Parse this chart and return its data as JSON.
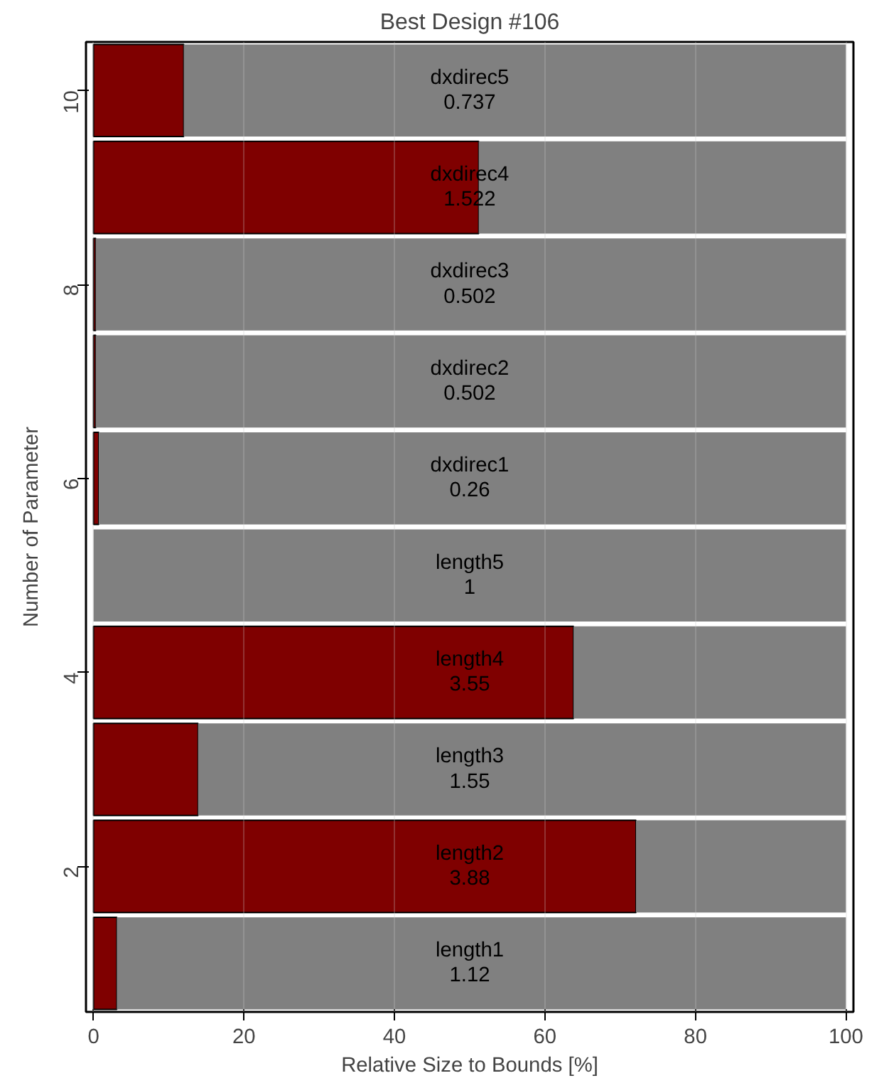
{
  "chart_data": {
    "type": "bar",
    "orientation": "horizontal",
    "stacked": true,
    "title": "Best Design #106",
    "xlabel": "Relative Size to Bounds [%]",
    "ylabel": "Number of Parameter",
    "categories": [
      "10",
      null,
      "8",
      null,
      "6",
      null,
      "4",
      null,
      "2",
      null
    ],
    "series": [
      {
        "color": "#7f0000",
        "values": [
          12.0,
          51.2,
          0.3,
          0.3,
          0.7,
          0,
          63.8,
          13.9,
          72.1,
          3.1
        ]
      },
      {
        "color": "#808080",
        "values": [
          88.0,
          48.8,
          99.7,
          99.7,
          99.3,
          100,
          36.2,
          86.1,
          27.9,
          96.9
        ]
      }
    ],
    "annotations": [
      "dxdirec5\n0.737",
      "dxdirec4\n1.522",
      "dxdirec3\n0.502",
      "dxdirec2\n0.502",
      "dxdirec1\n0.26",
      "length5\n1",
      "length4\n3.55",
      "length3\n1.55",
      "length2\n3.88",
      "length1\n1.12"
    ],
    "xlim": [
      -1,
      101
    ],
    "xticks": [
      0,
      20,
      40,
      60,
      80,
      100
    ],
    "grid": "x"
  }
}
